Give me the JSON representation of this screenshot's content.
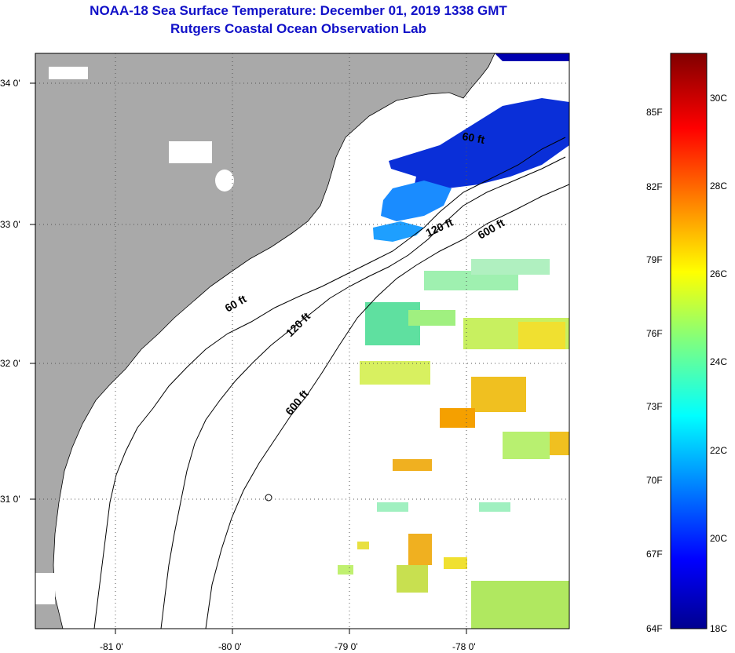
{
  "title": "NOAA-18 Sea Surface Temperature:  December 01, 2019 1338 GMT",
  "subtitle": "Rutgers Coastal Ocean Observation Lab",
  "map": {
    "lat_labels": [
      "34 0'",
      "33 0'",
      "32 0'",
      "31 0'"
    ],
    "lon_labels": [
      "-81 0'",
      "-80 0'",
      "-79 0'",
      "-78 0'"
    ],
    "contours": [
      "60 ft",
      "120 ft",
      "600 ft",
      "60 ft",
      "120 ft",
      "600 ft"
    ],
    "colors": {
      "land": "#a9a9a9",
      "ocean": "#ffffff",
      "grid": "#555555"
    }
  },
  "colorbar": {
    "f_labels": [
      "85F",
      "82F",
      "79F",
      "76F",
      "73F",
      "70F",
      "67F",
      "64F"
    ],
    "c_labels": [
      "30C",
      "28C",
      "26C",
      "24C",
      "22C",
      "20C",
      "18C"
    ],
    "range_c": [
      18,
      31
    ]
  }
}
